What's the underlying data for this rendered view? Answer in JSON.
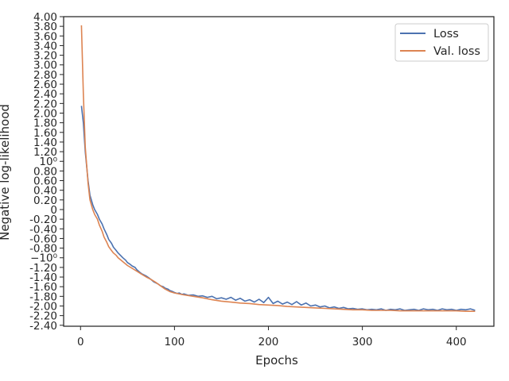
{
  "chart_data": {
    "type": "line",
    "title": "",
    "xlabel": "Epochs",
    "ylabel": "Negative log-likelihood",
    "xlim": [
      -18,
      440
    ],
    "ylim": [
      -2.42,
      4.0
    ],
    "grid": false,
    "legend_position": "top-right",
    "x_ticks": [
      {
        "value": 0,
        "label": "0"
      },
      {
        "value": 100,
        "label": "100"
      },
      {
        "value": 200,
        "label": "200"
      },
      {
        "value": 300,
        "label": "300"
      },
      {
        "value": 400,
        "label": "400"
      }
    ],
    "y_ticks": [
      {
        "value": 4.0,
        "label": "4.00"
      },
      {
        "value": 3.8,
        "label": "3.80"
      },
      {
        "value": 3.6,
        "label": "3.60"
      },
      {
        "value": 3.4,
        "label": "3.40"
      },
      {
        "value": 3.2,
        "label": "3.20"
      },
      {
        "value": 3.0,
        "label": "3.00"
      },
      {
        "value": 2.8,
        "label": "2.80"
      },
      {
        "value": 2.6,
        "label": "2.60"
      },
      {
        "value": 2.4,
        "label": "2.40"
      },
      {
        "value": 2.2,
        "label": "2.20"
      },
      {
        "value": 2.0,
        "label": "2.00"
      },
      {
        "value": 1.8,
        "label": "1.80"
      },
      {
        "value": 1.6,
        "label": "1.60"
      },
      {
        "value": 1.4,
        "label": "1.40"
      },
      {
        "value": 1.2,
        "label": "1.20"
      },
      {
        "value": 1.0,
        "label": "10⁰"
      },
      {
        "value": 0.8,
        "label": "0.80"
      },
      {
        "value": 0.6,
        "label": "0.60"
      },
      {
        "value": 0.4,
        "label": "0.40"
      },
      {
        "value": 0.2,
        "label": "0.20"
      },
      {
        "value": 0.0,
        "label": "0"
      },
      {
        "value": -0.2,
        "label": "-0.20"
      },
      {
        "value": -0.4,
        "label": "-0.40"
      },
      {
        "value": -0.6,
        "label": "-0.60"
      },
      {
        "value": -0.8,
        "label": "-0.80"
      },
      {
        "value": -1.0,
        "label": "−10⁰"
      },
      {
        "value": -1.2,
        "label": "-1.20"
      },
      {
        "value": -1.4,
        "label": "-1.40"
      },
      {
        "value": -1.6,
        "label": "-1.60"
      },
      {
        "value": -1.8,
        "label": "-1.80"
      },
      {
        "value": -2.0,
        "label": "-2.00"
      },
      {
        "value": -2.2,
        "label": "-2.20"
      },
      {
        "value": -2.4,
        "label": "-2.40"
      }
    ],
    "series": [
      {
        "name": "Loss",
        "color": "#4c72b0",
        "x": [
          1,
          3,
          5,
          8,
          10,
          13,
          15,
          18,
          20,
          23,
          25,
          28,
          30,
          33,
          35,
          38,
          40,
          43,
          45,
          48,
          50,
          53,
          55,
          58,
          60,
          63,
          65,
          68,
          70,
          73,
          75,
          78,
          80,
          83,
          85,
          88,
          90,
          93,
          95,
          98,
          100,
          103,
          105,
          108,
          110,
          115,
          120,
          125,
          130,
          135,
          140,
          145,
          150,
          155,
          160,
          165,
          170,
          175,
          180,
          185,
          190,
          195,
          200,
          205,
          210,
          215,
          220,
          225,
          230,
          235,
          240,
          245,
          250,
          255,
          260,
          265,
          270,
          275,
          280,
          285,
          290,
          295,
          300,
          305,
          310,
          315,
          320,
          325,
          330,
          335,
          340,
          345,
          350,
          355,
          360,
          365,
          370,
          375,
          380,
          385,
          390,
          395,
          400,
          405,
          410,
          415,
          420
        ],
        "y": [
          2.15,
          1.8,
          1.2,
          0.6,
          0.3,
          0.1,
          0.0,
          -0.1,
          -0.2,
          -0.3,
          -0.4,
          -0.52,
          -0.62,
          -0.7,
          -0.78,
          -0.85,
          -0.9,
          -0.96,
          -1.0,
          -1.05,
          -1.1,
          -1.14,
          -1.17,
          -1.2,
          -1.25,
          -1.3,
          -1.33,
          -1.36,
          -1.38,
          -1.42,
          -1.45,
          -1.5,
          -1.52,
          -1.55,
          -1.58,
          -1.6,
          -1.63,
          -1.65,
          -1.68,
          -1.7,
          -1.72,
          -1.74,
          -1.73,
          -1.76,
          -1.75,
          -1.78,
          -1.77,
          -1.8,
          -1.79,
          -1.82,
          -1.8,
          -1.85,
          -1.83,
          -1.86,
          -1.82,
          -1.88,
          -1.84,
          -1.9,
          -1.87,
          -1.92,
          -1.86,
          -1.93,
          -1.82,
          -1.95,
          -1.9,
          -1.96,
          -1.92,
          -1.97,
          -1.91,
          -1.98,
          -1.94,
          -2.0,
          -1.98,
          -2.02,
          -2.0,
          -2.04,
          -2.02,
          -2.05,
          -2.03,
          -2.06,
          -2.05,
          -2.07,
          -2.06,
          -2.08,
          -2.07,
          -2.08,
          -2.06,
          -2.09,
          -2.07,
          -2.08,
          -2.06,
          -2.09,
          -2.08,
          -2.07,
          -2.09,
          -2.06,
          -2.08,
          -2.07,
          -2.09,
          -2.06,
          -2.08,
          -2.07,
          -2.09,
          -2.07,
          -2.08,
          -2.06,
          -2.09
        ]
      },
      {
        "name": "Val. loss",
        "color": "#dd8452",
        "x": [
          1,
          3,
          5,
          8,
          10,
          13,
          15,
          18,
          20,
          23,
          25,
          28,
          30,
          33,
          35,
          38,
          40,
          45,
          50,
          55,
          60,
          65,
          70,
          75,
          80,
          85,
          90,
          95,
          100,
          110,
          120,
          130,
          140,
          150,
          160,
          170,
          180,
          190,
          200,
          210,
          220,
          230,
          240,
          250,
          260,
          270,
          280,
          290,
          300,
          310,
          320,
          330,
          340,
          350,
          360,
          370,
          380,
          390,
          400,
          410,
          420
        ],
        "y": [
          3.82,
          2.4,
          1.3,
          0.55,
          0.2,
          0.0,
          -0.1,
          -0.2,
          -0.32,
          -0.45,
          -0.57,
          -0.68,
          -0.77,
          -0.85,
          -0.9,
          -0.95,
          -1.0,
          -1.08,
          -1.16,
          -1.22,
          -1.28,
          -1.34,
          -1.4,
          -1.45,
          -1.51,
          -1.58,
          -1.65,
          -1.7,
          -1.73,
          -1.77,
          -1.8,
          -1.83,
          -1.87,
          -1.9,
          -1.92,
          -1.94,
          -1.95,
          -1.97,
          -1.98,
          -1.99,
          -2.01,
          -2.02,
          -2.03,
          -2.04,
          -2.05,
          -2.06,
          -2.07,
          -2.08,
          -2.08,
          -2.09,
          -2.09,
          -2.09,
          -2.1,
          -2.1,
          -2.1,
          -2.1,
          -2.1,
          -2.1,
          -2.1,
          -2.11,
          -2.11
        ]
      }
    ]
  }
}
